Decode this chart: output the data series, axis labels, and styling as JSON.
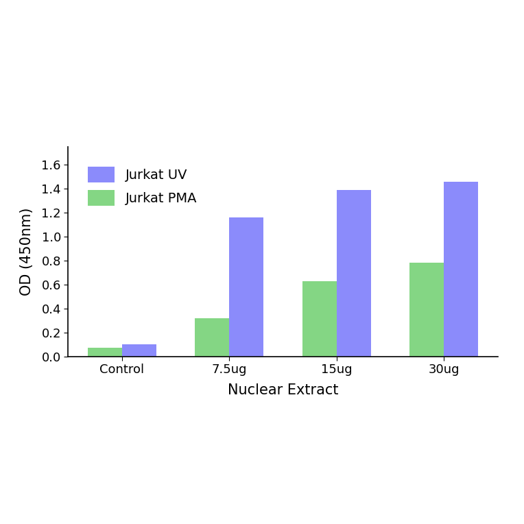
{
  "categories": [
    "Control",
    "7.5ug",
    "15ug",
    "30ug"
  ],
  "jurkat_uv": [
    0.1,
    1.16,
    1.39,
    1.46
  ],
  "jurkat_pma": [
    0.07,
    0.32,
    0.63,
    0.78
  ],
  "color_uv": "#6E6EFA",
  "color_pma": "#66CC66",
  "xlabel": "Nuclear Extract",
  "ylabel": "OD (450nm)",
  "legend_uv": "Jurkat UV",
  "legend_pma": "Jurkat PMA",
  "ylim": [
    0,
    1.75
  ],
  "yticks": [
    0.0,
    0.2,
    0.4,
    0.6,
    0.8,
    1.0,
    1.2,
    1.4,
    1.6
  ],
  "bar_width": 0.32,
  "background_color": "#ffffff",
  "label_fontsize": 15,
  "tick_fontsize": 13,
  "legend_fontsize": 14
}
